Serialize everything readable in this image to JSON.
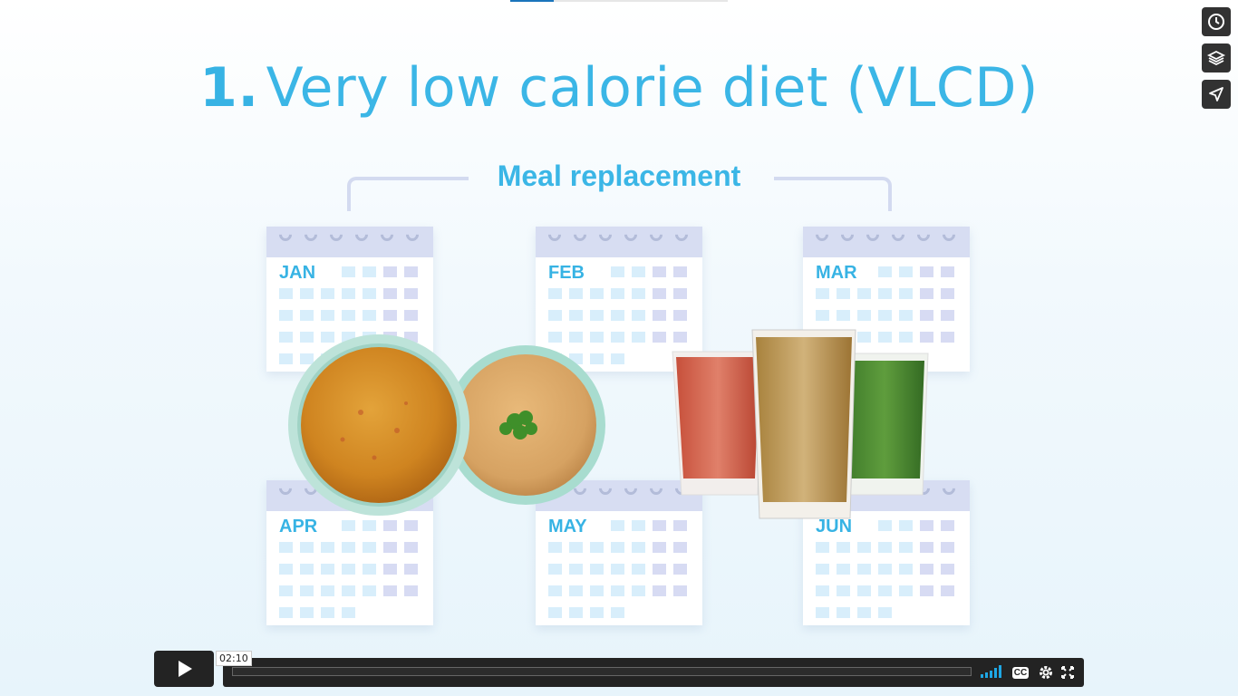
{
  "top_progress": {
    "fraction": 0.2
  },
  "slide": {
    "title_number": "1.",
    "title_text": "Very low calorie diet (VLCD)",
    "subtitle": "Meal replacement",
    "calendars": [
      {
        "month": "JAN"
      },
      {
        "month": "FEB"
      },
      {
        "month": "MAR"
      },
      {
        "month": "APR"
      },
      {
        "month": "MAY"
      },
      {
        "month": "JUN"
      }
    ]
  },
  "side_actions": [
    {
      "icon": "clock-icon"
    },
    {
      "icon": "layers-icon"
    },
    {
      "icon": "send-icon"
    }
  ],
  "player": {
    "play_icon": "play-icon",
    "timestamp": "02:10",
    "progress_fraction": 0.0,
    "volume_icon": "volume-bars-icon",
    "cc_label": "CC",
    "settings_icon": "gear-icon",
    "fullscreen_icon": "fullscreen-icon"
  },
  "colors": {
    "accent_blue": "#3bb6e6",
    "calendar_header": "#d7ddf2",
    "player_bg": "#232323",
    "volume_blue": "#1ea7e4"
  }
}
